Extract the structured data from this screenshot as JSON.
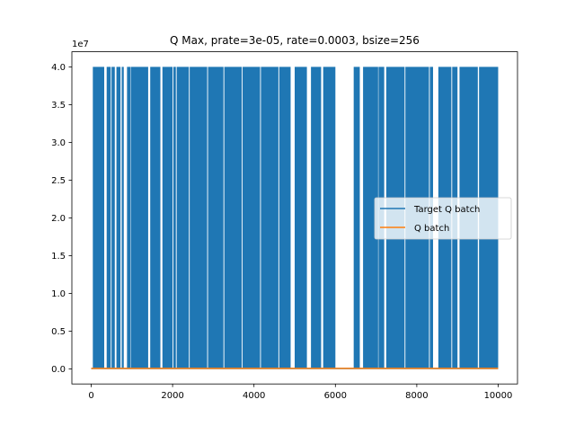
{
  "chart_data": {
    "type": "line",
    "title": "Q Max, prate=3e-05, rate=0.0003, bsize=256",
    "xlabel": "",
    "ylabel": "",
    "y_scale_label": "1e7",
    "xlim": [
      -475,
      10475
    ],
    "ylim": [
      -2000000,
      42000000
    ],
    "x_ticks": [
      0,
      2000,
      4000,
      6000,
      8000,
      10000
    ],
    "x_tick_labels": [
      "0",
      "2000",
      "4000",
      "6000",
      "8000",
      "10000"
    ],
    "y_ticks": [
      0,
      5000000,
      10000000,
      15000000,
      20000000,
      25000000,
      30000000,
      35000000,
      40000000
    ],
    "y_tick_labels": [
      "0.0",
      "0.5",
      "1.0",
      "1.5",
      "2.0",
      "2.5",
      "3.0",
      "3.5",
      "4.0"
    ],
    "grid": false,
    "legend_position": "center-right",
    "series": [
      {
        "name": "Target Q batch",
        "color": "#1f77b4",
        "high_value": 40000000,
        "low_value": 50000,
        "active_x_ranges": [
          [
            40,
            320
          ],
          [
            380,
            480
          ],
          [
            500,
            580
          ],
          [
            620,
            720
          ],
          [
            750,
            800
          ],
          [
            880,
            960
          ],
          [
            970,
            1400
          ],
          [
            1450,
            1700
          ],
          [
            1750,
            2000
          ],
          [
            2020,
            2080
          ],
          [
            2100,
            2400
          ],
          [
            2420,
            2850
          ],
          [
            2870,
            3250
          ],
          [
            3270,
            3700
          ],
          [
            3720,
            4150
          ],
          [
            4170,
            4600
          ],
          [
            4620,
            4900
          ],
          [
            5000,
            5300
          ],
          [
            5400,
            5650
          ],
          [
            5700,
            6000
          ],
          [
            6450,
            6600
          ],
          [
            6680,
            7050
          ],
          [
            7060,
            7200
          ],
          [
            7250,
            7700
          ],
          [
            7720,
            8300
          ],
          [
            8320,
            8400
          ],
          [
            8530,
            8850
          ],
          [
            8870,
            9000
          ],
          [
            9050,
            9500
          ],
          [
            9530,
            10000
          ]
        ]
      },
      {
        "name": "Q batch",
        "color": "#ff7f0e",
        "high_value": 150000,
        "low_value": 50000,
        "active_x_ranges": [
          [
            0,
            10000
          ]
        ]
      }
    ]
  }
}
